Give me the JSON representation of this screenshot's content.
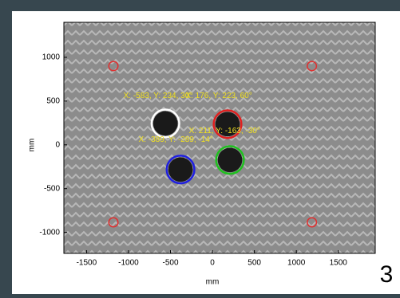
{
  "chart_data": {
    "type": "image",
    "xlabel": "mm",
    "ylabel": "mm",
    "xlim": [
      -1770,
      1940
    ],
    "ylim": [
      -1240,
      1400
    ],
    "xticks": [
      -1500,
      -1000,
      -500,
      0,
      500,
      1000,
      1500
    ],
    "yticks": [
      -1000,
      -500,
      0,
      500,
      1000
    ],
    "markers": [
      {
        "x": -1180,
        "y": 900,
        "r": 55,
        "color": "#e03030"
      },
      {
        "x": 1185,
        "y": 900,
        "r": 55,
        "color": "#e03030"
      },
      {
        "x": -1180,
        "y": -885,
        "r": 55,
        "color": "#e03030"
      },
      {
        "x": 1185,
        "y": -885,
        "r": 55,
        "color": "#e03030"
      },
      {
        "x": -560,
        "y": 245,
        "r": 165,
        "color": "#ffffff"
      },
      {
        "x": 180,
        "y": 236,
        "r": 165,
        "color": "#e02020"
      },
      {
        "x": -380,
        "y": -282,
        "r": 165,
        "color": "#2020e0"
      },
      {
        "x": 209,
        "y": -173,
        "r": 165,
        "color": "#20c020"
      }
    ],
    "annotations": [
      {
        "text": "X: -583, Y: 234, 30°",
        "x": -1060,
        "y": 560
      },
      {
        "text": "X: 176, Y: 223, 60°",
        "x": -320,
        "y": 560
      },
      {
        "text": "X: -389, Y: -289, -14°",
        "x": -880,
        "y": 60
      },
      {
        "text": "X: 211, Y: -163, -30°",
        "x": -280,
        "y": 160
      }
    ],
    "annotation_color": "#f0e020"
  },
  "page_number": "3"
}
